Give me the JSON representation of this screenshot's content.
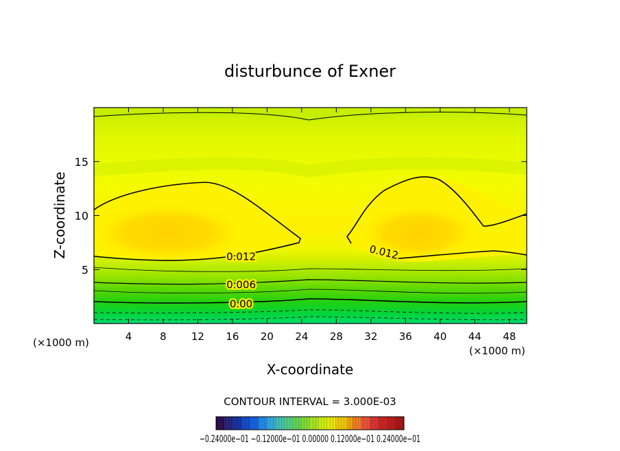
{
  "chart_data": {
    "type": "contour",
    "title": "disturbunce of Exner",
    "xlabel": "X-coordinate",
    "ylabel": "Z-coordinate",
    "x_unit": "(×1000 m)",
    "y_unit": "(×1000 m)",
    "xlim": [
      0,
      50
    ],
    "ylim": [
      0,
      20
    ],
    "x_ticks": [
      4,
      8,
      12,
      16,
      20,
      24,
      28,
      32,
      36,
      40,
      44,
      48
    ],
    "y_ticks": [
      5,
      10,
      15
    ],
    "contour_interval_text": "CONTOUR INTERVAL = 3.000E-03",
    "contour_labels": [
      {
        "text": "0.012",
        "x": 17,
        "z": 6.2
      },
      {
        "text": "0.012",
        "x": 33.5,
        "z": 6.6
      },
      {
        "text": "0.006",
        "x": 17,
        "z": 3.6
      },
      {
        "text": "0.00",
        "x": 17,
        "z": 1.8
      }
    ],
    "colorbar": {
      "min": -0.024,
      "max": 0.024,
      "labels_text": "−0.24000e−01  −0.12000e−01  0.00000  0.12000e−01  0.24000e−01"
    },
    "grid": false,
    "legend": "none"
  }
}
